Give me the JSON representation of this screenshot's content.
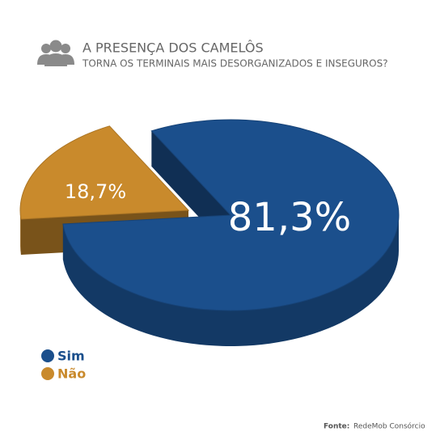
{
  "chart_data": {
    "type": "pie",
    "title": "A PRESENÇA DOS CAMELÔS",
    "subtitle": "TORNA OS TERMINAIS MAIS DESORGANIZADOS E INSEGUROS?",
    "categories": [
      "Sim",
      "Não"
    ],
    "values": [
      81.3,
      18.7
    ],
    "value_labels": [
      "81,3%",
      "18,7%"
    ],
    "colors": [
      "#1b4f8c",
      "#c98a2c"
    ],
    "legend": "bottom-left",
    "source_label": "Fonte:",
    "source": "RedeMob Consórcio"
  }
}
